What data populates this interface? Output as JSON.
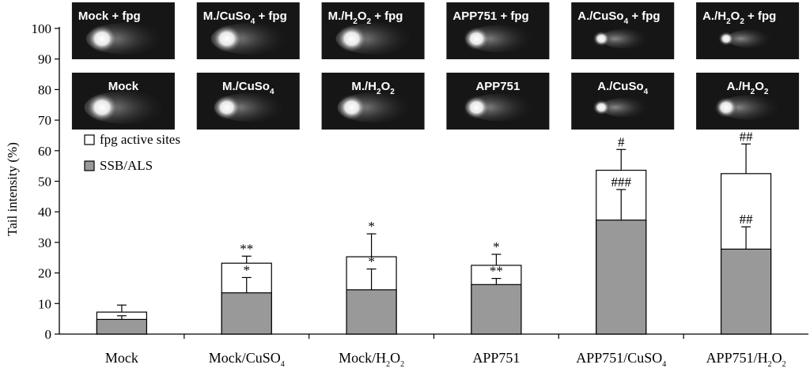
{
  "chart_data": {
    "type": "bar",
    "stacked": true,
    "ylabel": "Tail intensity (%)",
    "ylim": [
      0,
      100
    ],
    "yticks": [
      0,
      10,
      20,
      30,
      40,
      50,
      60,
      70,
      80,
      90,
      100
    ],
    "categories": [
      {
        "base": "Mock",
        "sub": ""
      },
      {
        "base": "Mock/CuSO",
        "sub": "4"
      },
      {
        "base": "Mock/H",
        "sub": "2",
        "mid": "O",
        "sub2": "2"
      },
      {
        "base": "APP751",
        "sub": ""
      },
      {
        "base": "APP751/CuSO",
        "sub": "4"
      },
      {
        "base": "APP751/H",
        "sub": "2",
        "mid": "O",
        "sub2": "2"
      }
    ],
    "series": [
      {
        "name": "SSB/ALS",
        "color": "#999999",
        "values": [
          4.8,
          13.5,
          14.5,
          16.2,
          37.3,
          27.8
        ],
        "errors": [
          1.2,
          5.0,
          6.8,
          2.0,
          10.0,
          7.3
        ],
        "annotations": [
          "",
          "*",
          "*",
          "**",
          "###",
          "##"
        ]
      },
      {
        "name": "fpg active sites",
        "color": "#ffffff",
        "values": [
          2.4,
          9.7,
          10.8,
          6.3,
          16.3,
          24.7
        ],
        "errors": [
          2.3,
          2.3,
          7.5,
          3.6,
          6.8,
          9.7
        ],
        "annotations": [
          "",
          "**",
          "*",
          "*",
          "#",
          "##"
        ]
      }
    ],
    "legend_position": "top-left",
    "grid": false
  },
  "insets": {
    "row1": [
      {
        "text": "Mock + fpg",
        "sub": "",
        "tail": ""
      },
      {
        "text": "M./CuSo",
        "sub": "4",
        "tail": " + fpg"
      },
      {
        "text": "M./H",
        "sub": "2",
        "mid": "O",
        "sub2": "2",
        "tail": " + fpg"
      },
      {
        "text": "APP751 + fpg",
        "sub": "",
        "tail": ""
      },
      {
        "text": "A./CuSo",
        "sub": "4",
        "tail": " + fpg"
      },
      {
        "text": "A./H",
        "sub": "2",
        "mid": "O",
        "sub2": "2",
        "tail": " + fpg"
      }
    ],
    "row2": [
      {
        "text": "Mock",
        "sub": "",
        "tail": ""
      },
      {
        "text": "M./CuSo",
        "sub": "4",
        "tail": ""
      },
      {
        "text": "M./H",
        "sub": "2",
        "mid": "O",
        "sub2": "2",
        "tail": ""
      },
      {
        "text": "APP751",
        "sub": "",
        "tail": ""
      },
      {
        "text": "A./CuSo",
        "sub": "4",
        "tail": ""
      },
      {
        "text": "A./H",
        "sub": "2",
        "mid": "O",
        "sub2": "2",
        "tail": ""
      }
    ]
  }
}
